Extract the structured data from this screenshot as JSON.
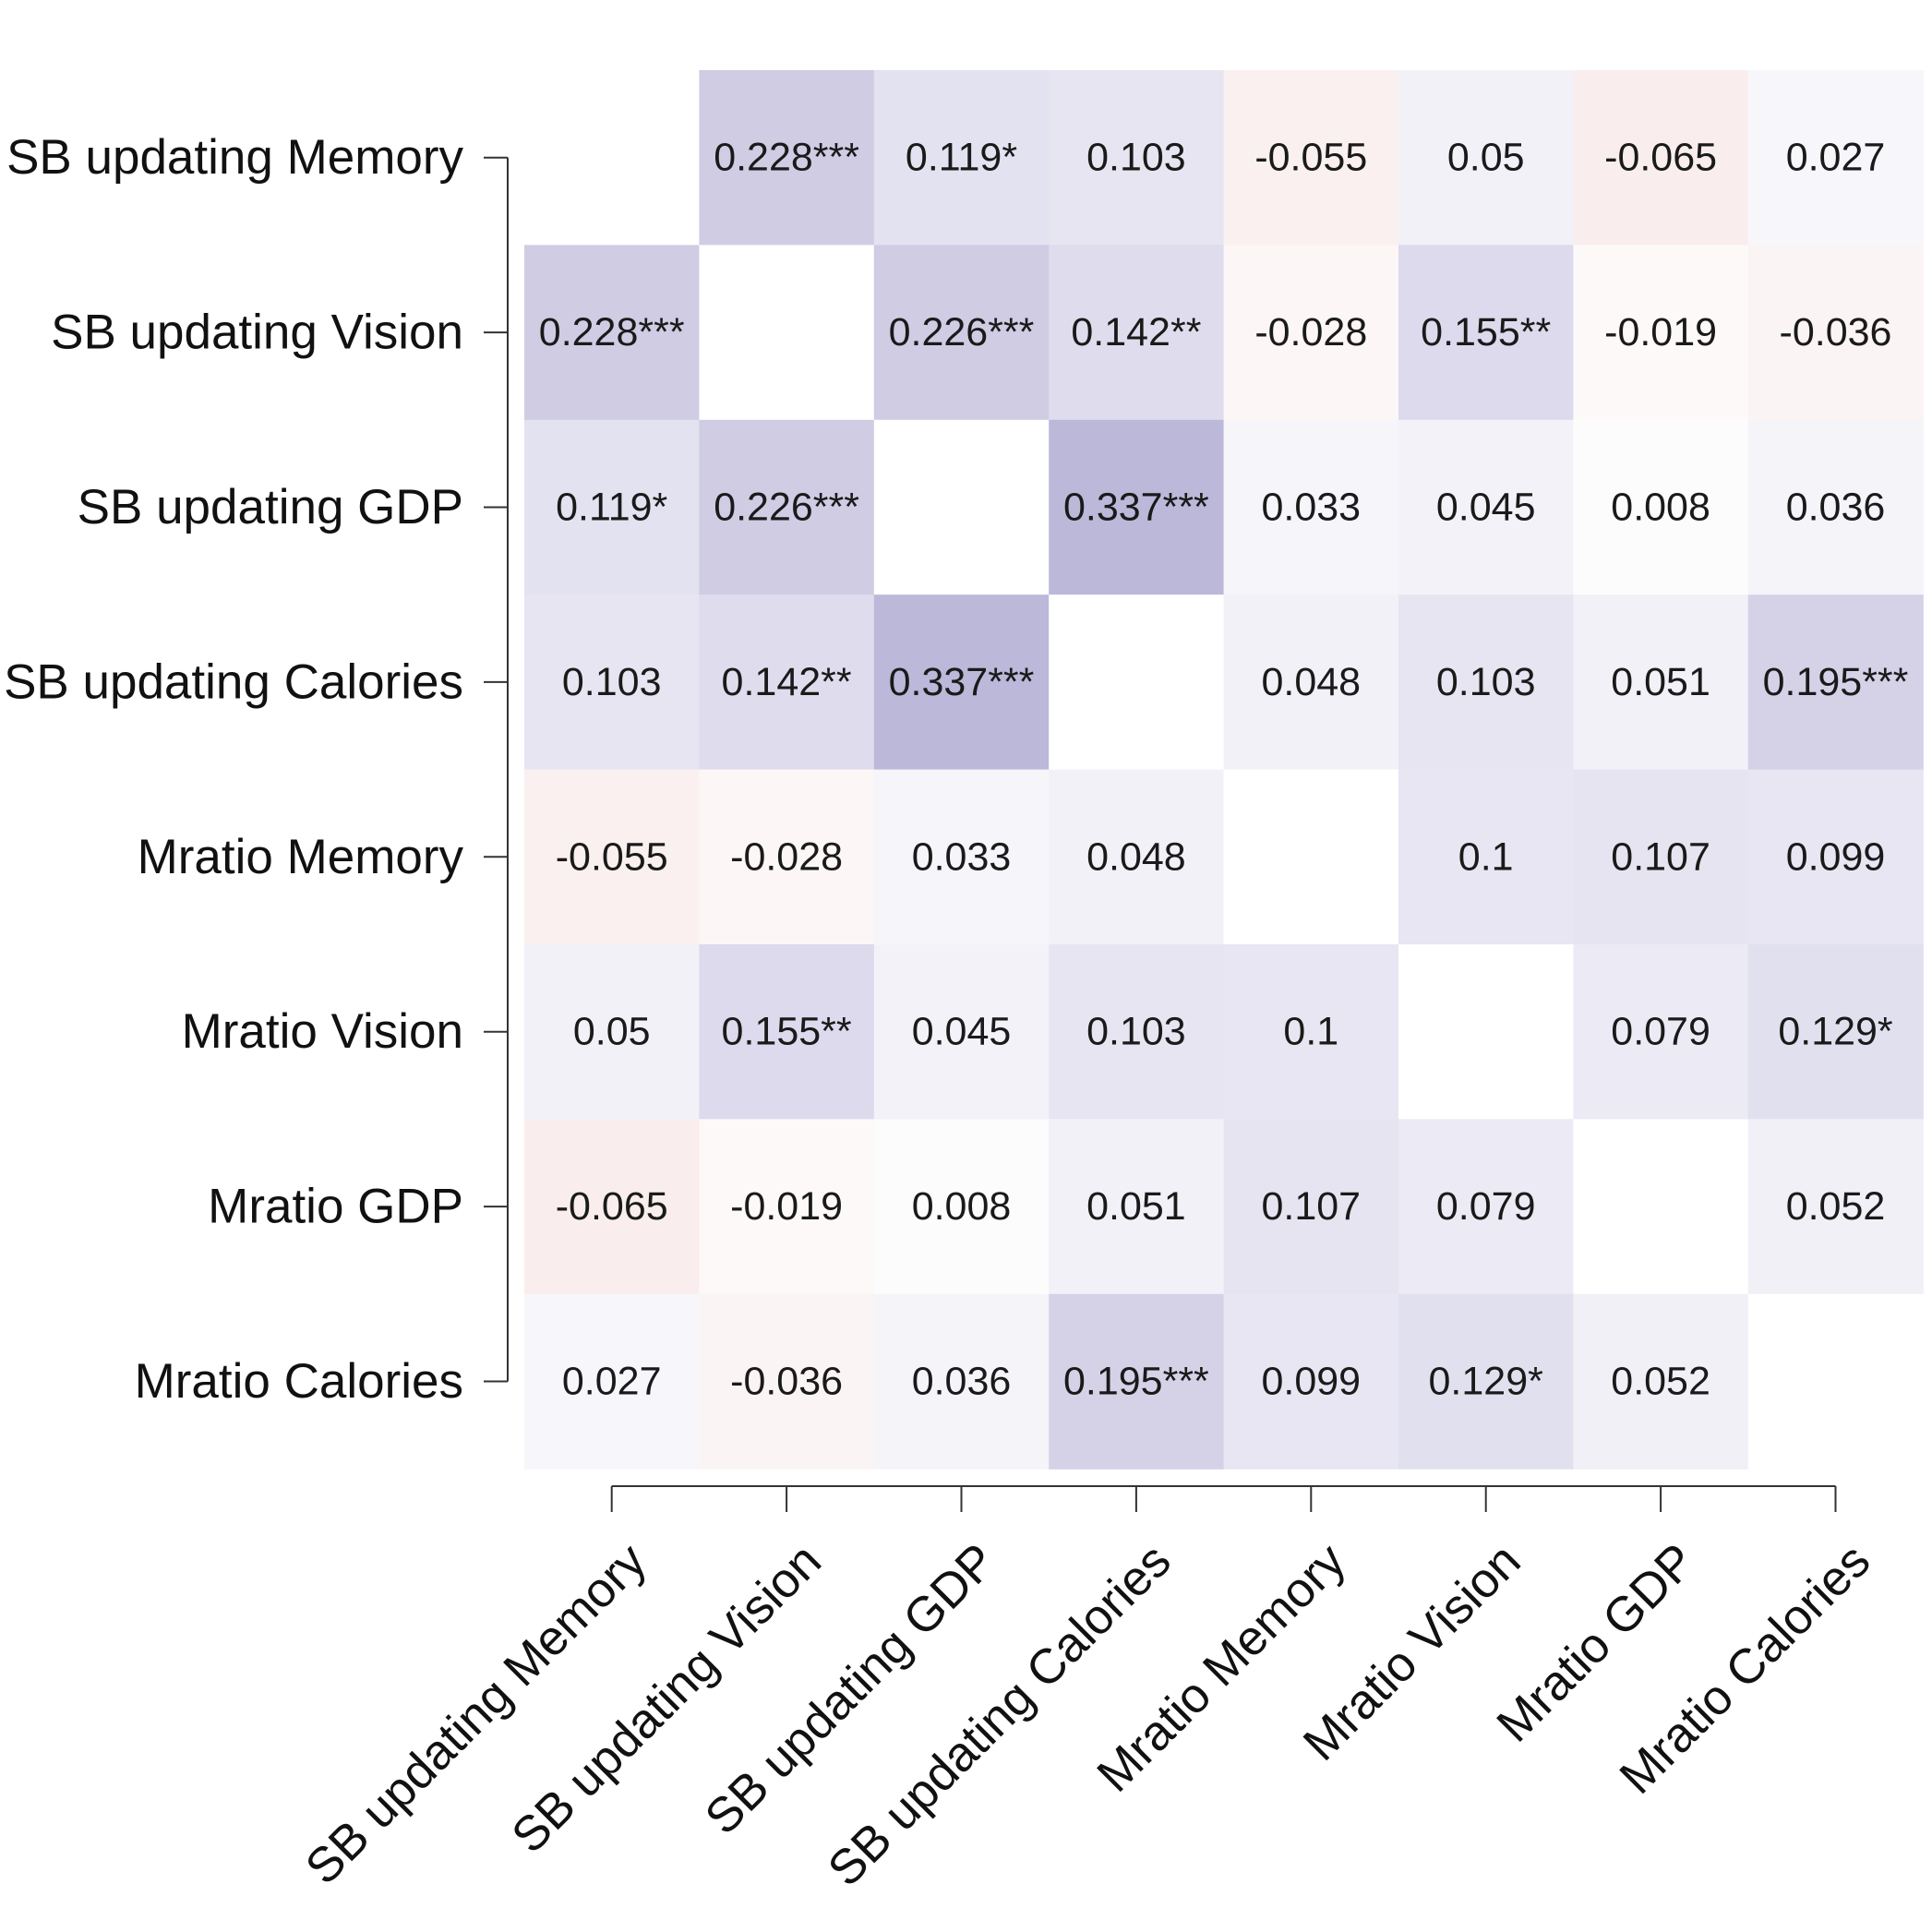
{
  "chart_data": {
    "type": "heatmap",
    "title": "",
    "xlabel": "",
    "ylabel": "",
    "variables": [
      "SB updating Memory",
      "SB updating Vision",
      "SB updating GDP",
      "SB updating Calories",
      "Mratio Memory",
      "Mratio Vision",
      "Mratio GDP",
      "Mratio Calories"
    ],
    "values": [
      [
        null,
        0.228,
        0.119,
        0.103,
        -0.055,
        0.05,
        -0.065,
        0.027
      ],
      [
        0.228,
        null,
        0.226,
        0.142,
        -0.028,
        0.155,
        -0.019,
        -0.036
      ],
      [
        0.119,
        0.226,
        null,
        0.337,
        0.033,
        0.045,
        0.008,
        0.036
      ],
      [
        0.103,
        0.142,
        0.337,
        null,
        0.048,
        0.103,
        0.051,
        0.195
      ],
      [
        -0.055,
        -0.028,
        0.033,
        0.048,
        null,
        0.1,
        0.107,
        0.099
      ],
      [
        0.05,
        0.155,
        0.045,
        0.103,
        0.1,
        null,
        0.079,
        0.129
      ],
      [
        -0.065,
        -0.019,
        0.008,
        0.051,
        0.107,
        0.079,
        null,
        0.052
      ],
      [
        0.027,
        -0.036,
        0.036,
        0.195,
        0.099,
        0.129,
        0.052,
        null
      ]
    ],
    "labels": [
      [
        "",
        "0.228***",
        "0.119*",
        "0.103",
        "-0.055",
        "0.05",
        "-0.065",
        "0.027"
      ],
      [
        "0.228***",
        "",
        "0.226***",
        "0.142**",
        "-0.028",
        "0.155**",
        "-0.019",
        "-0.036"
      ],
      [
        "0.119*",
        "0.226***",
        "",
        "0.337***",
        "0.033",
        "0.045",
        "0.008",
        "0.036"
      ],
      [
        "0.103",
        "0.142**",
        "0.337***",
        "",
        "0.048",
        "0.103",
        "0.051",
        "0.195***"
      ],
      [
        "-0.055",
        "-0.028",
        "0.033",
        "0.048",
        "",
        "0.1",
        "0.107",
        "0.099"
      ],
      [
        "0.05",
        "0.155**",
        "0.045",
        "0.103",
        "0.1",
        "",
        "0.079",
        "0.129*"
      ],
      [
        "-0.065",
        "-0.019",
        "0.008",
        "0.051",
        "0.107",
        "0.079",
        "",
        "0.052"
      ],
      [
        "0.027",
        "-0.036",
        "0.036",
        "0.195***",
        "0.099",
        "0.129*",
        "0.052",
        ""
      ]
    ],
    "color_scale": {
      "positive": "#5a4fa3",
      "negative": "#c0504d",
      "neutral": "#ffffff",
      "max_abs": 1.0
    },
    "diagonal": "blank",
    "legend": "none"
  }
}
